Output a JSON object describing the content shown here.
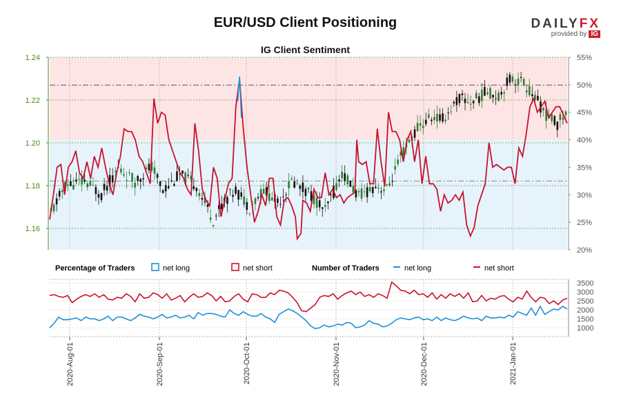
{
  "header": {
    "title": "EUR/USD Client Positioning",
    "subtitle": "IG Client Sentiment",
    "brand": "DAILYFX",
    "brand_sub": "provided by",
    "brand_badge": "IG"
  },
  "colors": {
    "candle_up": "#2e7d32",
    "candle_down": "#111111",
    "net_long": "#1e90d8",
    "net_short": "#c8102e",
    "bg_short": "#fde5e5",
    "bg_long": "#e6f3fb",
    "left_axis": "#4a8a1a"
  },
  "legend": {
    "pct_title": "Percentage of Traders",
    "pct_long": "net long",
    "pct_short": "net short",
    "num_title": "Number of Traders",
    "num_long": "net long",
    "num_short": "net short"
  },
  "chart_data": [
    {
      "type": "candlestick",
      "title": "IG Client Sentiment",
      "left_axis": {
        "label": "",
        "range": [
          1.15,
          1.24
        ],
        "ticks": [
          "1.16",
          "1.18",
          "1.20",
          "1.22",
          "1.24"
        ]
      },
      "right_axis": {
        "label": "",
        "range": [
          20,
          55
        ],
        "ticks": [
          "20%",
          "25%",
          "30%",
          "35%",
          "40%",
          "45%",
          "50%",
          "55%"
        ]
      },
      "reference_lines": {
        "left_dashdot": 1.227,
        "right_dashdot": 32.5
      },
      "price": {
        "start": 1.167,
        "end": 1.214,
        "knots": [
          [
            0,
            1.167
          ],
          [
            5,
            1.18
          ],
          [
            12,
            1.182
          ],
          [
            18,
            1.176
          ],
          [
            24,
            1.188
          ],
          [
            30,
            1.182
          ],
          [
            36,
            1.189
          ],
          [
            40,
            1.178
          ],
          [
            46,
            1.185
          ],
          [
            52,
            1.18
          ],
          [
            58,
            1.164
          ],
          [
            62,
            1.173
          ],
          [
            66,
            1.178
          ],
          [
            71,
            1.17
          ],
          [
            76,
            1.178
          ],
          [
            81,
            1.172
          ],
          [
            86,
            1.182
          ],
          [
            92,
            1.177
          ],
          [
            98,
            1.168
          ],
          [
            104,
            1.186
          ],
          [
            110,
            1.175
          ],
          [
            116,
            1.18
          ],
          [
            120,
            1.178
          ],
          [
            126,
            1.196
          ],
          [
            131,
            1.207
          ],
          [
            136,
            1.212
          ],
          [
            140,
            1.211
          ],
          [
            146,
            1.221
          ],
          [
            150,
            1.219
          ],
          [
            156,
            1.224
          ],
          [
            160,
            1.222
          ],
          [
            164,
            1.23
          ],
          [
            168,
            1.229
          ],
          [
            172,
            1.223
          ],
          [
            177,
            1.213
          ],
          [
            181,
            1.209
          ],
          [
            184,
            1.214
          ]
        ],
        "candles": 185
      },
      "series": [
        {
          "name": "net short",
          "axis": "right",
          "knots": [
            [
              0,
              25.5
            ],
            [
              2,
              30
            ],
            [
              4,
              35
            ],
            [
              6,
              35.5
            ],
            [
              8,
              30
            ],
            [
              10,
              35
            ],
            [
              12,
              36
            ],
            [
              14,
              38
            ],
            [
              16,
              34
            ],
            [
              18,
              33
            ],
            [
              20,
              36
            ],
            [
              22,
              33
            ],
            [
              24,
              37
            ],
            [
              26,
              35
            ],
            [
              28,
              38.5
            ],
            [
              30,
              35
            ],
            [
              32,
              32
            ],
            [
              34,
              30
            ],
            [
              36,
              34
            ],
            [
              38,
              37
            ],
            [
              40,
              42
            ],
            [
              42,
              41.5
            ],
            [
              44,
              41.5
            ],
            [
              46,
              40
            ],
            [
              48,
              37
            ],
            [
              50,
              36
            ],
            [
              52,
              34
            ],
            [
              54,
              32
            ],
            [
              56,
              47.5
            ],
            [
              58,
              43
            ],
            [
              60,
              45
            ],
            [
              62,
              44.5
            ],
            [
              64,
              40
            ],
            [
              66,
              38
            ],
            [
              68,
              36
            ],
            [
              70,
              34
            ],
            [
              72,
              33
            ],
            [
              74,
              31
            ],
            [
              76,
              30
            ],
            [
              78,
              43
            ],
            [
              80,
              38
            ],
            [
              82,
              31
            ],
            [
              84,
              29
            ],
            [
              86,
              28
            ],
            [
              88,
              35
            ],
            [
              90,
              33
            ],
            [
              92,
              26
            ],
            [
              94,
              29
            ],
            [
              96,
              32
            ],
            [
              98,
              33
            ],
            [
              100,
              46
            ],
            [
              102,
              51
            ],
            [
              104,
              42
            ],
            [
              106,
              35
            ],
            [
              108,
              30
            ],
            [
              110,
              25
            ],
            [
              112,
              27
            ],
            [
              114,
              30
            ],
            [
              116,
              28
            ],
            [
              118,
              33
            ],
            [
              120,
              33
            ],
            [
              122,
              26
            ],
            [
              124,
              24.5
            ],
            [
              126,
              29
            ],
            [
              128,
              29.5
            ],
            [
              130,
              28
            ],
            [
              132,
              26
            ],
            [
              133,
              22
            ],
            [
              135,
              23
            ],
            [
              136,
              29
            ],
            [
              138,
              28.5
            ],
            [
              140,
              27
            ],
            [
              142,
              31
            ],
            [
              144,
              29.5
            ],
            [
              146,
              29.5
            ],
            [
              148,
              34
            ],
            [
              150,
              30
            ],
            [
              152,
              31
            ],
            [
              154,
              29.5
            ],
            [
              156,
              30
            ],
            [
              158,
              28.5
            ],
            [
              160,
              29.5
            ],
            [
              162,
              30
            ],
            [
              164,
              30.5
            ],
            [
              165,
              40
            ],
            [
              166,
              36
            ],
            [
              168,
              35.5
            ],
            [
              170,
              36
            ],
            [
              172,
              32
            ],
            [
              174,
              32
            ],
            [
              176,
              42
            ],
            [
              178,
              36
            ],
            [
              180,
              31.5
            ],
            [
              182,
              45
            ],
            [
              184,
              41.5
            ],
            [
              186,
              41.5
            ],
            [
              188,
              40
            ],
            [
              190,
              36
            ],
            [
              192,
              40
            ],
            [
              194,
              41.5
            ],
            [
              196,
              36
            ],
            [
              198,
              40
            ],
            [
              200,
              32
            ],
            [
              202,
              37
            ],
            [
              204,
              32
            ],
            [
              206,
              32
            ],
            [
              208,
              31
            ],
            [
              210,
              27
            ],
            [
              212,
              30
            ],
            [
              214,
              28.5
            ],
            [
              216,
              29
            ],
            [
              218,
              30
            ],
            [
              220,
              29
            ],
            [
              222,
              30.5
            ],
            [
              224,
              24.5
            ],
            [
              226,
              22.5
            ],
            [
              228,
              24
            ],
            [
              230,
              28
            ],
            [
              232,
              30
            ],
            [
              234,
              32
            ],
            [
              236,
              39.5
            ],
            [
              238,
              35
            ],
            [
              240,
              35.5
            ],
            [
              242,
              35
            ],
            [
              244,
              34.5
            ],
            [
              246,
              35
            ],
            [
              248,
              35
            ],
            [
              250,
              32
            ],
            [
              252,
              38.5
            ],
            [
              254,
              37
            ],
            [
              256,
              41
            ],
            [
              258,
              46
            ],
            [
              260,
              47.5
            ],
            [
              262,
              45
            ],
            [
              264,
              46
            ],
            [
              266,
              47
            ],
            [
              268,
              44
            ],
            [
              270,
              45
            ],
            [
              272,
              46
            ],
            [
              274,
              46
            ],
            [
              276,
              44.5
            ],
            [
              278,
              43
            ]
          ]
        },
        {
          "name": "net long",
          "axis": "right",
          "note_from_short": true
        }
      ]
    },
    {
      "type": "line",
      "title": "Number of Traders",
      "right_axis": {
        "range": [
          500,
          3700
        ],
        "ticks": [
          "1000",
          "1500",
          "2000",
          "2500",
          "3000",
          "3500"
        ]
      },
      "series": [
        {
          "name": "net short",
          "values": [
            2800,
            2850,
            2750,
            2700,
            2800,
            2400,
            2600,
            2750,
            2850,
            2750,
            2900,
            2700,
            2850,
            2600,
            2550,
            2700,
            2650,
            2900,
            2750,
            2450,
            2900,
            2650,
            2700,
            2950,
            2850,
            2650,
            2900,
            2550,
            2650,
            2800,
            2450,
            2700,
            2900,
            2700,
            2750,
            2950,
            2800,
            2500,
            2750,
            2450,
            2500,
            2750,
            2900,
            2600,
            2450,
            2900,
            2850,
            2700,
            2700,
            2950,
            2850,
            3100,
            3050,
            2950,
            2700,
            2400,
            1950,
            1900,
            2100,
            2300,
            2700,
            2800,
            2750,
            2900,
            2600,
            2800,
            2950,
            3050,
            2850,
            3000,
            2750,
            2850,
            2700,
            2900,
            2800,
            2650,
            3550,
            3350,
            3100,
            3050,
            2900,
            3100,
            2850,
            2900,
            2700,
            2950,
            2600,
            2850,
            2650,
            2900,
            2750,
            2900,
            2650,
            2950,
            2450,
            2500,
            2800,
            2500,
            2650,
            2600,
            2750,
            2800,
            2600,
            2450,
            2700,
            2600,
            3050,
            2700,
            2450,
            2700,
            2650,
            2350,
            2500,
            2300,
            2550,
            2650
          ]
        },
        {
          "name": "net long",
          "values": [
            1000,
            1250,
            1600,
            1450,
            1450,
            1500,
            1550,
            1400,
            1600,
            1500,
            1500,
            1400,
            1500,
            1650,
            1400,
            1600,
            1600,
            1500,
            1400,
            1550,
            1750,
            1650,
            1600,
            1500,
            1600,
            1750,
            1550,
            1600,
            1700,
            1550,
            1600,
            1700,
            1500,
            1850,
            1700,
            1800,
            1800,
            1750,
            1650,
            1600,
            2000,
            1800,
            1700,
            1900,
            1750,
            1650,
            1650,
            1800,
            1600,
            1500,
            1300,
            1750,
            1900,
            2050,
            1950,
            1800,
            1600,
            1400,
            1100,
            950,
            1000,
            1150,
            1050,
            1100,
            1200,
            1150,
            1300,
            1250,
            1000,
            1050,
            1150,
            1400,
            1250,
            1200,
            1050,
            1100,
            1250,
            1450,
            1550,
            1500,
            1450,
            1550,
            1600,
            1450,
            1500,
            1400,
            1600,
            1400,
            1550,
            1450,
            1400,
            1500,
            1650,
            1550,
            1500,
            1550,
            1400,
            1650,
            1550,
            1550,
            1600,
            1550,
            1700,
            1600,
            1900,
            1800,
            1700,
            2100,
            1700,
            2200,
            1750,
            1900,
            2050,
            2000,
            2200,
            2050
          ]
        }
      ]
    }
  ],
  "x_axis": {
    "labels": [
      "2020-Aug-01",
      "2020-Sep-01",
      "2020-Oct-01",
      "2020-Nov-01",
      "2020-Dec-01",
      "2021-Jan-01"
    ]
  }
}
